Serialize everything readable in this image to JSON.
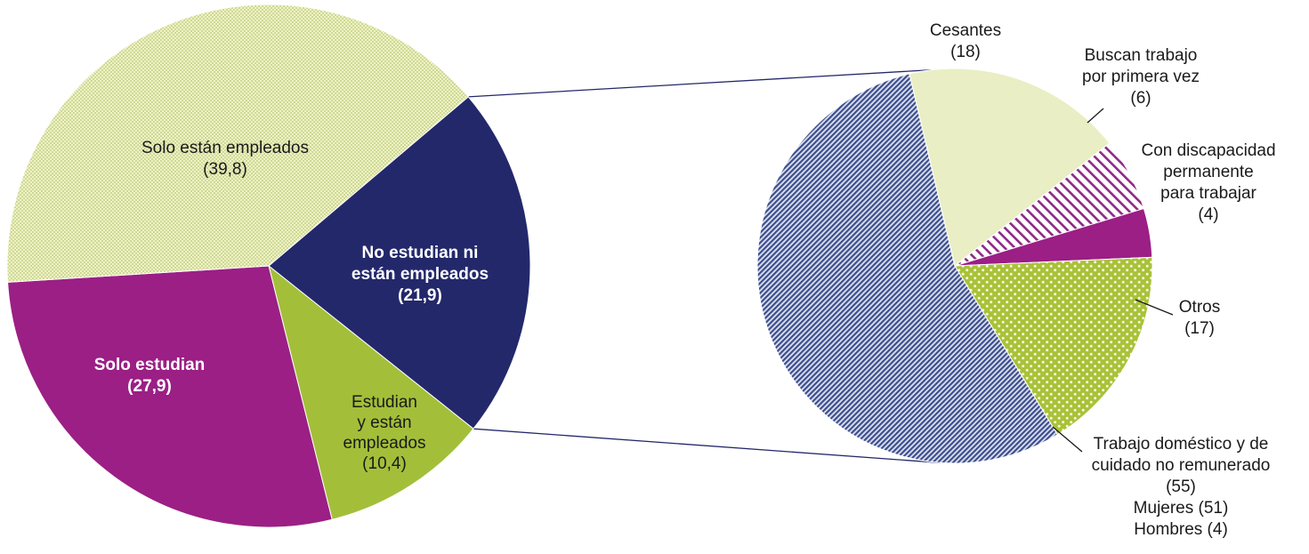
{
  "chart_data": [
    {
      "type": "pie",
      "slices": [
        {
          "label": "No estudian ni están empleados",
          "lines": [
            "No estudian ni",
            "están empleados",
            "(21,9)"
          ],
          "value": 21.9,
          "color": "#23286b",
          "pattern": "solid",
          "bold": true
        },
        {
          "label": "Estudian y están empleados",
          "lines": [
            "Estudian",
            "y están",
            "empleados",
            "(10,4)"
          ],
          "value": 10.4,
          "color": "#a3bf3a",
          "pattern": "solid",
          "bold": false
        },
        {
          "label": "Solo estudian",
          "lines": [
            "Solo estudian",
            "(27,9)"
          ],
          "value": 27.9,
          "color": "#9b1f85",
          "pattern": "solid",
          "bold": true
        },
        {
          "label": "Solo están empleados",
          "lines": [
            "Solo están empleados",
            "(39,8)"
          ],
          "value": 39.8,
          "color": "#e6ecb0",
          "pattern": "dots",
          "bold": false
        }
      ]
    },
    {
      "type": "pie",
      "slices": [
        {
          "label": "Buscan trabajo por primera vez",
          "lines": [
            "Buscan trabajo",
            "por primera vez",
            "(6)"
          ],
          "value": 6,
          "color": "#8e2a86",
          "pattern": "stripes"
        },
        {
          "label": "Con discapacidad permanente para trabajar",
          "lines": [
            "Con discapacidad",
            "permanente",
            "para trabajar",
            "(4)"
          ],
          "value": 4,
          "color": "#9b1f85",
          "pattern": "solid"
        },
        {
          "label": "Otros",
          "lines": [
            "Otros",
            "(17)"
          ],
          "value": 17,
          "color": "#b4cc3c",
          "pattern": "dots"
        },
        {
          "label": "Trabajo doméstico y de cuidado no remunerado",
          "lines": [
            "Trabajo doméstico y de",
            "cuidado no remunerado",
            "(55)",
            "Mujeres (51)",
            "Hombres (4)"
          ],
          "value": 55,
          "color": "#3d4f8f",
          "pattern": "diagonal"
        },
        {
          "label": "Cesantes",
          "lines": [
            "Cesantes",
            "(18)"
          ],
          "value": 18,
          "color": "#eaeec4",
          "pattern": "solid"
        }
      ]
    }
  ],
  "colors": {
    "connector": "#23286b",
    "leader": "#1a1a1a"
  }
}
